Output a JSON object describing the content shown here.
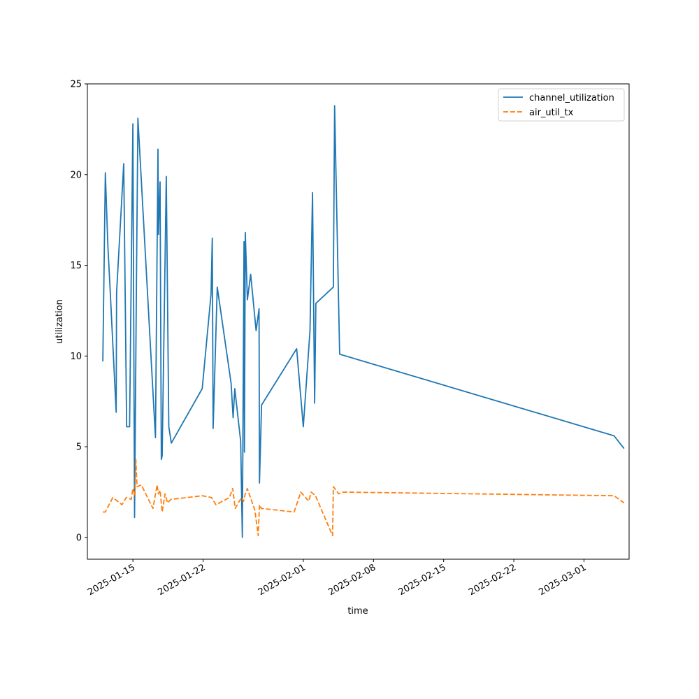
{
  "chart_data": {
    "type": "line",
    "title": "",
    "xlabel": "time",
    "ylabel": "utilization",
    "x_axis": "date",
    "xlim": [
      "2025-01-10T11:00",
      "2025-03-05T12:00"
    ],
    "ylim": [
      -1.2,
      25
    ],
    "y_ticks": [
      0,
      5,
      10,
      15,
      20,
      25
    ],
    "x_ticks": [
      "2025-01-15",
      "2025-01-22",
      "2025-02-01",
      "2025-02-08",
      "2025-02-15",
      "2025-02-22",
      "2025-03-01"
    ],
    "grid": false,
    "legend": "upper right",
    "series": [
      {
        "name": "channel_utilization",
        "color": "#1f77b4",
        "dash": "solid",
        "points": [
          [
            "2025-01-12T00:00",
            9.7
          ],
          [
            "2025-01-12T06:00",
            20.1
          ],
          [
            "2025-01-12T12:00",
            16.1
          ],
          [
            "2025-01-12T18:00",
            13.4
          ],
          [
            "2025-01-13T08:00",
            6.9
          ],
          [
            "2025-01-13T09:00",
            13.5
          ],
          [
            "2025-01-14T02:00",
            20.6
          ],
          [
            "2025-01-14T09:00",
            6.1
          ],
          [
            "2025-01-14T16:00",
            6.1
          ],
          [
            "2025-01-15T00:00",
            22.8
          ],
          [
            "2025-01-15T04:00",
            1.1
          ],
          [
            "2025-01-15T08:00",
            12.7
          ],
          [
            "2025-01-15T12:00",
            23.1
          ],
          [
            "2025-01-17T06:00",
            5.5
          ],
          [
            "2025-01-17T12:00",
            21.4
          ],
          [
            "2025-01-17T13:00",
            16.7
          ],
          [
            "2025-01-17T17:00",
            19.6
          ],
          [
            "2025-01-17T20:00",
            4.3
          ],
          [
            "2025-01-17T22:00",
            4.5
          ],
          [
            "2025-01-18T08:00",
            19.9
          ],
          [
            "2025-01-18T14:00",
            6.1
          ],
          [
            "2025-01-18T20:00",
            5.2
          ],
          [
            "2025-01-21T22:00",
            8.2
          ],
          [
            "2025-01-22T19:00",
            13.4
          ],
          [
            "2025-01-22T22:00",
            16.5
          ],
          [
            "2025-01-23T00:00",
            6.0
          ],
          [
            "2025-01-23T10:00",
            13.8
          ],
          [
            "2025-01-24T19:00",
            8.5
          ],
          [
            "2025-01-25T00:00",
            6.6
          ],
          [
            "2025-01-25T04:00",
            8.2
          ],
          [
            "2025-01-25T18:00",
            5.3
          ],
          [
            "2025-01-25T22:00",
            0.0
          ],
          [
            "2025-01-26T02:00",
            16.3
          ],
          [
            "2025-01-26T03:00",
            4.7
          ],
          [
            "2025-01-26T05:00",
            16.8
          ],
          [
            "2025-01-26T10:00",
            13.1
          ],
          [
            "2025-01-26T18:00",
            14.5
          ],
          [
            "2025-01-27T07:00",
            11.4
          ],
          [
            "2025-01-27T14:00",
            12.6
          ],
          [
            "2025-01-27T15:00",
            3.0
          ],
          [
            "2025-01-27T20:00",
            7.3
          ],
          [
            "2025-01-31T08:00",
            10.4
          ],
          [
            "2025-02-01T00:00",
            6.1
          ],
          [
            "2025-02-01T16:00",
            11.4
          ],
          [
            "2025-02-01T22:00",
            19.0
          ],
          [
            "2025-02-02T03:00",
            7.4
          ],
          [
            "2025-02-02T06:00",
            12.9
          ],
          [
            "2025-02-04T00:00",
            13.8
          ],
          [
            "2025-02-04T03:00",
            23.8
          ],
          [
            "2025-02-04T15:00",
            10.1
          ],
          [
            "2025-03-04T00:00",
            5.6
          ],
          [
            "2025-03-05T00:00",
            4.9
          ]
        ]
      },
      {
        "name": "air_util_tx",
        "color": "#ff7f0e",
        "dash": "dashed",
        "points": [
          [
            "2025-01-12T00:00",
            1.4
          ],
          [
            "2025-01-12T06:00",
            1.4
          ],
          [
            "2025-01-13T00:00",
            2.2
          ],
          [
            "2025-01-13T22:00",
            1.8
          ],
          [
            "2025-01-14T08:00",
            2.2
          ],
          [
            "2025-01-14T20:00",
            2.1
          ],
          [
            "2025-01-15T00:00",
            2.7
          ],
          [
            "2025-01-15T05:00",
            2.3
          ],
          [
            "2025-01-15T07:00",
            4.3
          ],
          [
            "2025-01-15T10:00",
            2.8
          ],
          [
            "2025-01-15T20:00",
            2.9
          ],
          [
            "2025-01-17T00:00",
            1.6
          ],
          [
            "2025-01-17T10:00",
            2.9
          ],
          [
            "2025-01-17T13:00",
            2.4
          ],
          [
            "2025-01-17T17:00",
            2.6
          ],
          [
            "2025-01-17T22:00",
            1.4
          ],
          [
            "2025-01-18T05:00",
            2.4
          ],
          [
            "2025-01-18T11:00",
            1.9
          ],
          [
            "2025-01-18T19:00",
            2.1
          ],
          [
            "2025-01-21T23:00",
            2.3
          ],
          [
            "2025-01-22T20:00",
            2.2
          ],
          [
            "2025-01-23T07:00",
            1.8
          ],
          [
            "2025-01-24T15:00",
            2.2
          ],
          [
            "2025-01-24T23:00",
            2.7
          ],
          [
            "2025-01-25T05:00",
            1.6
          ],
          [
            "2025-01-25T20:00",
            2.2
          ],
          [
            "2025-01-26T01:00",
            2.0
          ],
          [
            "2025-01-26T05:00",
            2.4
          ],
          [
            "2025-01-26T10:00",
            2.7
          ],
          [
            "2025-01-27T04:00",
            1.5
          ],
          [
            "2025-01-27T12:00",
            0.1
          ],
          [
            "2025-01-27T15:00",
            1.8
          ],
          [
            "2025-01-27T19:00",
            1.6
          ],
          [
            "2025-01-31T02:00",
            1.4
          ],
          [
            "2025-01-31T18:00",
            2.5
          ],
          [
            "2025-02-01T13:00",
            2.0
          ],
          [
            "2025-02-01T19:00",
            2.5
          ],
          [
            "2025-02-02T05:00",
            2.3
          ],
          [
            "2025-02-03T22:00",
            0.1
          ],
          [
            "2025-02-04T00:00",
            2.8
          ],
          [
            "2025-02-04T13:00",
            2.4
          ],
          [
            "2025-02-05T00:00",
            2.5
          ],
          [
            "2025-03-04T00:00",
            2.3
          ],
          [
            "2025-03-05T00:00",
            1.9
          ]
        ]
      }
    ]
  }
}
